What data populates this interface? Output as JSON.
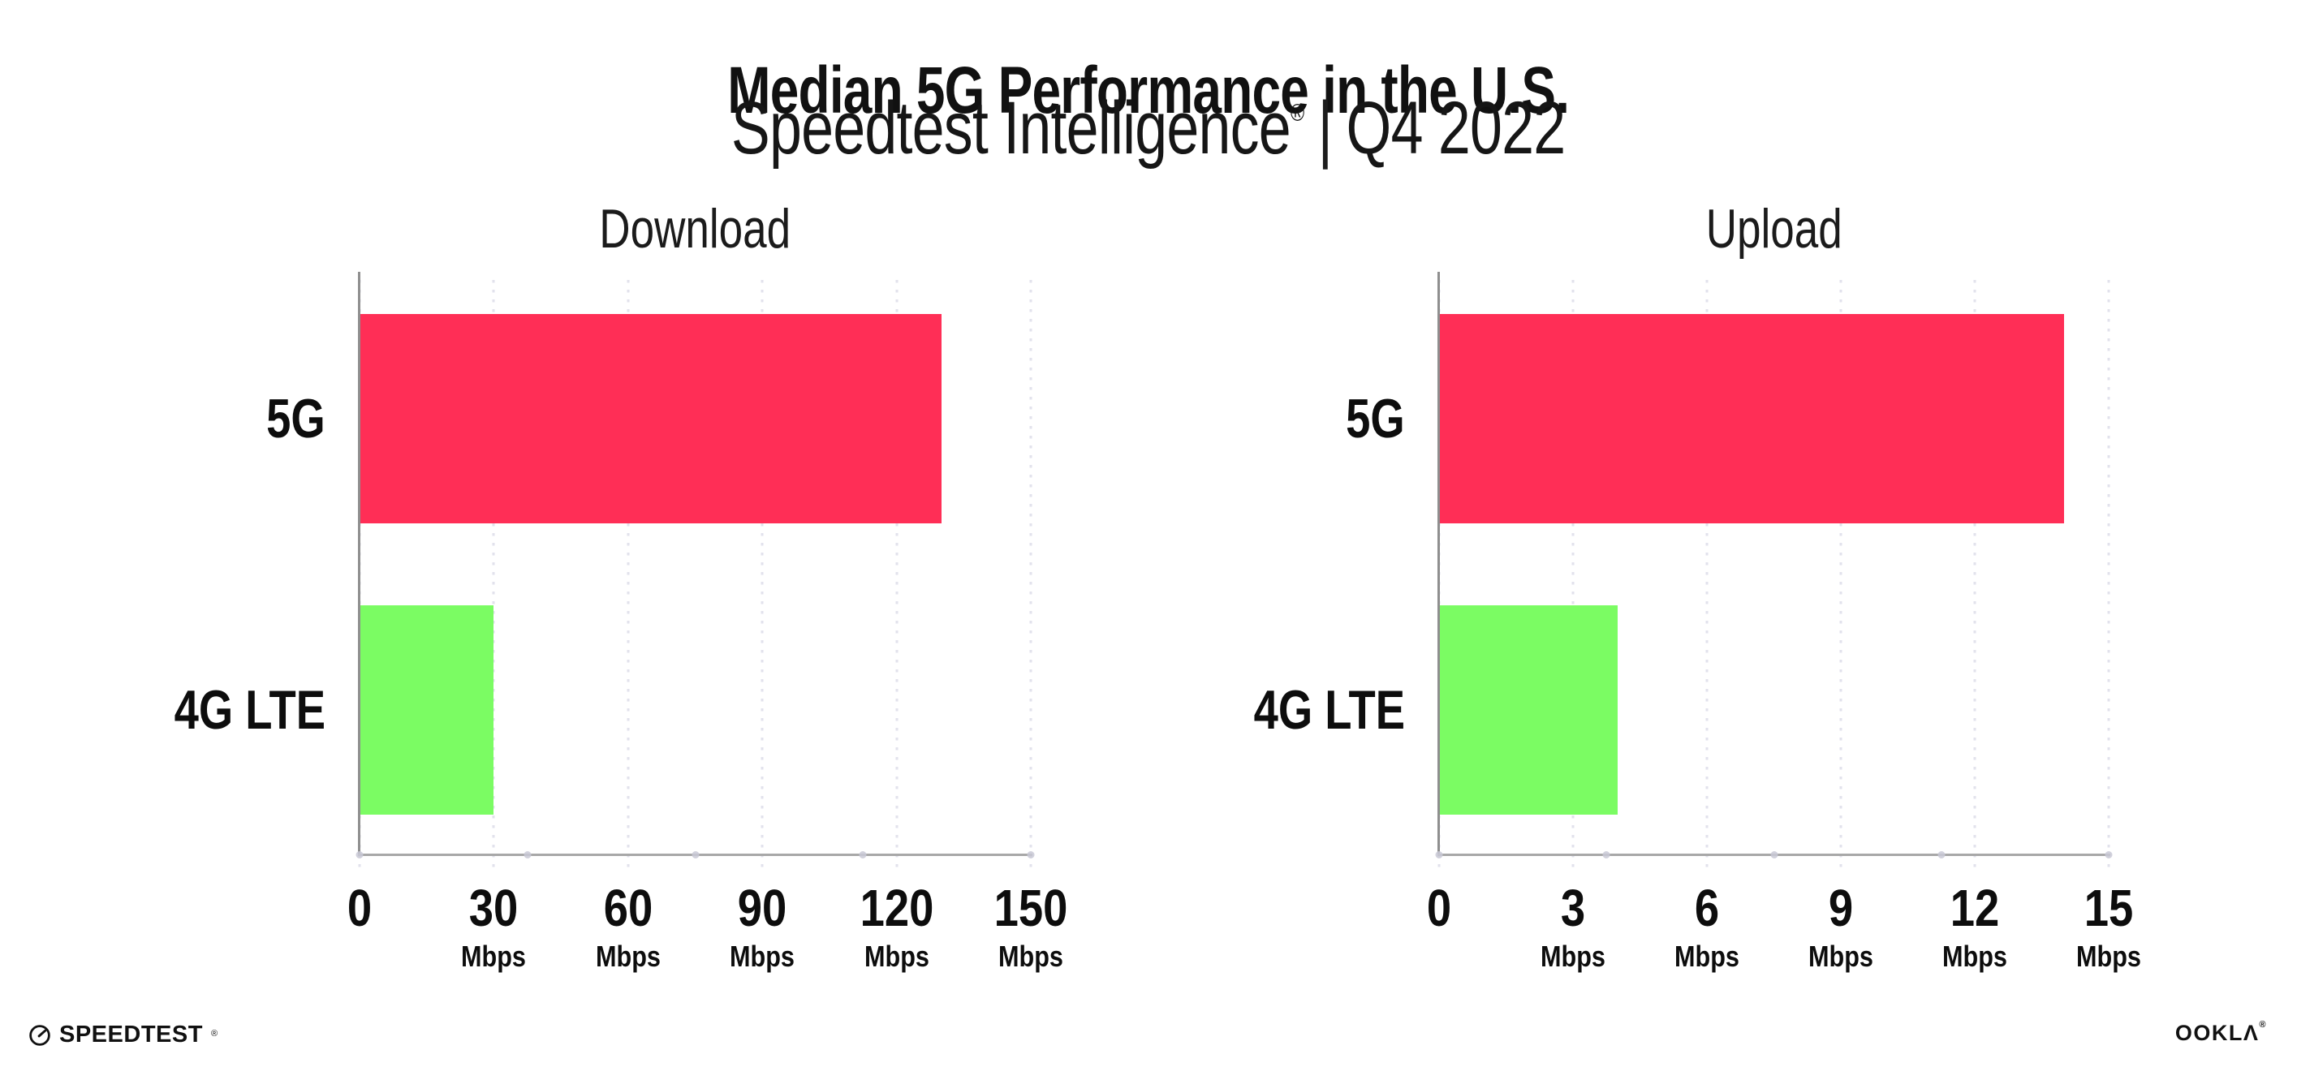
{
  "header": {
    "title": "Median 5G Performance in the U.S.",
    "subtitle_brand": "Speedtest Intelligence",
    "subtitle_mark": "®",
    "subtitle_separator": "|",
    "subtitle_period": "Q4 2022"
  },
  "chart_data": [
    {
      "type": "bar",
      "orientation": "horizontal",
      "title": "Download",
      "categories": [
        "5G",
        "4G LTE"
      ],
      "values": [
        130,
        30
      ],
      "unit": "Mbps",
      "xlim": [
        0,
        150
      ],
      "xticks": [
        0,
        30,
        60,
        90,
        120,
        150
      ],
      "bar_colors": [
        "#FF2E56",
        "#7BFC63"
      ],
      "grid": "dotted-vertical-gridlines"
    },
    {
      "type": "bar",
      "orientation": "horizontal",
      "title": "Upload",
      "categories": [
        "5G",
        "4G LTE"
      ],
      "values": [
        14,
        4
      ],
      "unit": "Mbps",
      "xlim": [
        0,
        15
      ],
      "xticks": [
        0,
        3,
        6,
        9,
        12,
        15
      ],
      "bar_colors": [
        "#FF2E56",
        "#7BFC63"
      ],
      "grid": "dotted-vertical-gridlines"
    }
  ],
  "footer": {
    "speedtest_label": "SPEEDTEST",
    "speedtest_mark": "®",
    "ookla_label": "OOKLA",
    "ookla_display": "OOKLΛ",
    "ookla_mark": "®"
  },
  "colors": {
    "bar_5g": "#FF2E56",
    "bar_4g_lte": "#7BFC63",
    "axis_line": "#9A9A9A",
    "gridline": "#E3E3ED",
    "text": "#111111",
    "background": "#FFFFFF"
  }
}
